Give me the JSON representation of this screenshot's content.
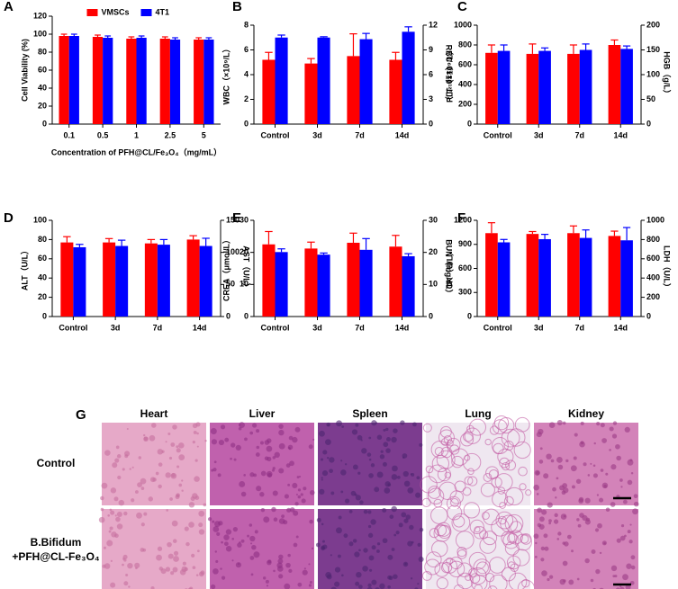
{
  "chart_data": [
    {
      "type": "bar",
      "panel": "A",
      "ylabel": "Cell Viability (%)",
      "xlabel": "Concentration of PFH@CL/Fe₃O₄（mg/mL）",
      "legend": "top",
      "categories": [
        "0.1",
        "0.5",
        "1",
        "2.5",
        "5"
      ],
      "series": [
        {
          "name": "VMSCs",
          "color": "#ff0000",
          "values": [
            98,
            97,
            95,
            95,
            94
          ],
          "errors": [
            2,
            2,
            2,
            2,
            2
          ]
        },
        {
          "name": "4T1",
          "color": "#0000ff",
          "values": [
            98,
            96,
            96,
            94,
            94
          ],
          "errors": [
            2,
            2,
            2,
            2,
            2
          ]
        }
      ],
      "ylim": [
        0,
        120
      ],
      "yticks": [
        0,
        20,
        40,
        60,
        80,
        100,
        120
      ]
    },
    {
      "type": "bar",
      "panel": "B",
      "ylabel": "WBC（×10⁹/L）",
      "y2label": "RBC（×10¹²/L）",
      "categories": [
        "Control",
        "3d",
        "7d",
        "14d"
      ],
      "series": [
        {
          "color": "#ff0000",
          "values": [
            5.2,
            4.9,
            5.5,
            5.2
          ],
          "errors": [
            0.6,
            0.4,
            1.8,
            0.6
          ]
        },
        {
          "color": "#0000ff",
          "axis": "y2",
          "values": [
            10.5,
            10.5,
            10.3,
            11.2
          ],
          "errors": [
            0.3,
            0.1,
            0.7,
            0.6
          ]
        }
      ],
      "ylim": [
        0,
        8
      ],
      "yticks": [
        0,
        2,
        4,
        6,
        8
      ],
      "y2lim": [
        0,
        12
      ],
      "y2ticks": [
        0,
        3,
        6,
        9,
        12
      ]
    },
    {
      "type": "bar",
      "panel": "C",
      "ylabel": "PLT（×10⁹/L）",
      "y2label": "HGB（g/L）",
      "categories": [
        "Control",
        "3d",
        "7d",
        "14d"
      ],
      "series": [
        {
          "color": "#ff0000",
          "values": [
            720,
            710,
            710,
            800
          ],
          "errors": [
            80,
            100,
            90,
            50
          ]
        },
        {
          "color": "#0000ff",
          "axis": "y2",
          "values": [
            148,
            148,
            150,
            152
          ],
          "errors": [
            12,
            6,
            12,
            6
          ]
        }
      ],
      "ylim": [
        0,
        1000
      ],
      "yticks": [
        0,
        200,
        400,
        600,
        800,
        1000
      ],
      "y2lim": [
        0,
        200
      ],
      "y2ticks": [
        0,
        50,
        100,
        150,
        200
      ]
    },
    {
      "type": "bar",
      "panel": "D",
      "ylabel": "ALT（U/L）",
      "y2label": "AST（U/L）",
      "categories": [
        "Control",
        "3d",
        "7d",
        "14d"
      ],
      "series": [
        {
          "color": "#ff0000",
          "values": [
            77,
            77,
            76,
            80
          ],
          "errors": [
            6,
            4,
            4,
            4
          ]
        },
        {
          "color": "#0000ff",
          "axis": "y2",
          "values": [
            108,
            110,
            112,
            110
          ],
          "errors": [
            4.5,
            9,
            8,
            12
          ]
        }
      ],
      "ylim": [
        0,
        100
      ],
      "yticks": [
        0,
        20,
        40,
        60,
        80,
        100
      ],
      "y2lim": [
        0,
        150
      ],
      "y2ticks": [
        0,
        50,
        100,
        150
      ]
    },
    {
      "type": "bar",
      "panel": "E",
      "ylabel": "CREA（μmol/L）",
      "y2label": "BUN（mg/dL）",
      "categories": [
        "Control",
        "3d",
        "7d",
        "14d"
      ],
      "series": [
        {
          "color": "#ff0000",
          "values": [
            22.5,
            21.2,
            23,
            21.8
          ],
          "errors": [
            4,
            2,
            3,
            3.5
          ]
        },
        {
          "color": "#0000ff",
          "axis": "y2",
          "values": [
            20.1,
            19.3,
            20.8,
            18.8
          ],
          "errors": [
            1,
            0.5,
            3.5,
            0.8
          ]
        }
      ],
      "ylim": [
        0,
        30
      ],
      "yticks": [
        0,
        10,
        20,
        30
      ],
      "y2lim": [
        0,
        30
      ],
      "y2ticks": [
        0,
        10,
        20,
        30
      ]
    },
    {
      "type": "bar",
      "panel": "F",
      "ylabel": "CK（U/L）",
      "y2label": "LDH（U/L）",
      "categories": [
        "Control",
        "3d",
        "7d",
        "14d"
      ],
      "series": [
        {
          "color": "#ff0000",
          "values": [
            1040,
            1030,
            1040,
            1005
          ],
          "errors": [
            130,
            30,
            90,
            60
          ]
        },
        {
          "color": "#0000ff",
          "axis": "y2",
          "values": [
            771,
            804,
            817,
            792
          ],
          "errors": [
            30,
            50,
            83,
            133
          ]
        }
      ],
      "ylim": [
        0,
        1200
      ],
      "yticks": [
        0,
        300,
        600,
        900,
        1200
      ],
      "y2lim": [
        0,
        1000
      ],
      "y2ticks": [
        0,
        200,
        400,
        600,
        800,
        1000
      ]
    }
  ],
  "histology": {
    "panel": "G",
    "columns": [
      "Heart",
      "Liver",
      "Spleen",
      "Lung",
      "Kidney"
    ],
    "rows": [
      [
        "Control"
      ],
      [
        "B.Bifidum",
        "+PFH@CL-Fe₃O₄"
      ]
    ]
  }
}
